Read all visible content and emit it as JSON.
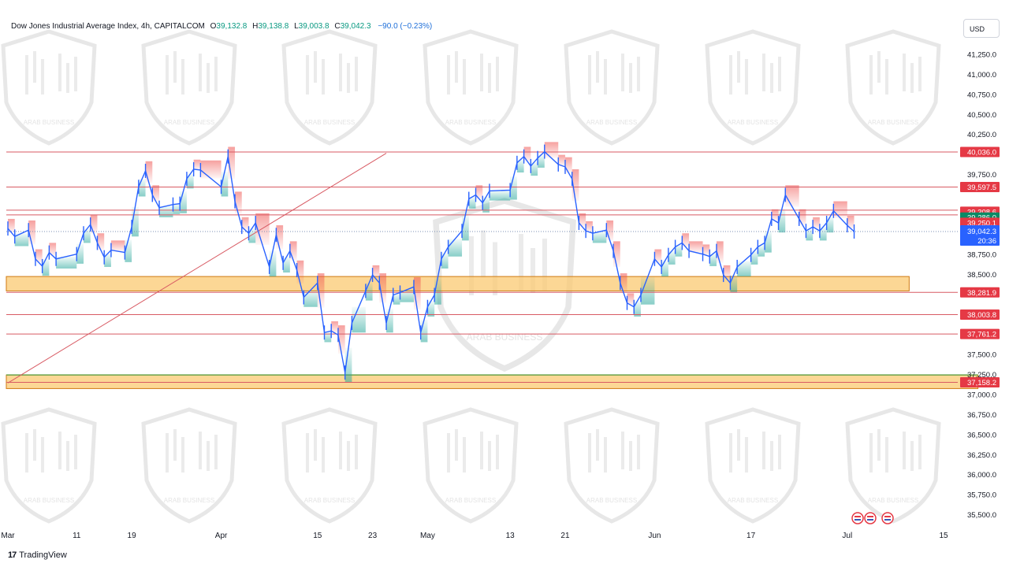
{
  "header": {
    "symbol": "Dow Jones Industrial Average Index, 4h, CAPITALCOM",
    "open_label": "O",
    "open": "39,132.8",
    "high_label": "H",
    "high": "39,138.8",
    "low_label": "L",
    "low": "39,003.8",
    "close_label": "C",
    "close": "39,042.3",
    "change": "−90.0 (−0.23%)"
  },
  "currency": "USD",
  "watermark_text": "ARAB BUSINESS",
  "footer": {
    "brand": "TradingView",
    "brand_icon": "tradingview-logo-icon"
  },
  "colors": {
    "candle": "#2962ff",
    "level_line": "#d85a63",
    "zone_fill": "#fbc972",
    "zone_border": "#d07a12",
    "green_zone_border": "#6aa54c",
    "band_up": "#26a69a",
    "band_down": "#ef5350",
    "last_price": "#2962ff",
    "resistance_label": "#e53945",
    "support_label_green": "#0a8a65"
  },
  "chart_data": {
    "type": "line",
    "ylim": [
      35400,
      41400
    ],
    "y_ticks": [
      "41,250.0",
      "41,000.0",
      "40,750.0",
      "40,500.0",
      "40,250.0",
      "39,750.0",
      "38,750.0",
      "38,500.0",
      "37,500.0",
      "37,250.0",
      "37,000.0",
      "36,750.0",
      "36,500.0",
      "36,250.0",
      "36,000.0",
      "35,750.0",
      "35,500.0"
    ],
    "x_labels": [
      {
        "label": "Mar",
        "date": "2024-03-01"
      },
      {
        "label": "11",
        "date": "2024-03-11"
      },
      {
        "label": "19",
        "date": "2024-03-19"
      },
      {
        "label": "Apr",
        "date": "2024-04-01"
      },
      {
        "label": "15",
        "date": "2024-04-15"
      },
      {
        "label": "23",
        "date": "2024-04-23"
      },
      {
        "label": "May",
        "date": "2024-05-01"
      },
      {
        "label": "13",
        "date": "2024-05-13"
      },
      {
        "label": "21",
        "date": "2024-05-21"
      },
      {
        "label": "Jun",
        "date": "2024-06-03"
      },
      {
        "label": "17",
        "date": "2024-06-17"
      },
      {
        "label": "Jul",
        "date": "2024-07-01"
      },
      {
        "label": "15",
        "date": "2024-07-15"
      }
    ],
    "price_levels": [
      {
        "value": 40036.0,
        "label": "40,036.0",
        "color": "#e53945"
      },
      {
        "value": 39597.5,
        "label": "39,597.5",
        "color": "#e53945"
      },
      {
        "value": 39308.6,
        "label": "39,308.6",
        "color": "#e53945"
      },
      {
        "value": 39286.0,
        "label": "39,286.0",
        "color": "#0a8a65"
      },
      {
        "value": 39250.1,
        "label": "39,250.1",
        "color": "#e53945"
      },
      {
        "value": 38281.9,
        "label": "38,281.9",
        "color": "#e53945"
      },
      {
        "value": 38003.8,
        "label": "38,003.8",
        "color": "#e53945"
      },
      {
        "value": 37761.2,
        "label": "37,761.2",
        "color": "#e53945"
      },
      {
        "value": 37158.2,
        "label": "37,158.2",
        "color": "#e53945"
      }
    ],
    "last_price": {
      "value": 39042.3,
      "label": "39,042.3",
      "countdown": "20:36"
    },
    "zones": [
      {
        "from": 38300,
        "to": 38480,
        "x0": "2024-03-01",
        "x1": "2024-07-10"
      },
      {
        "from": 37080,
        "to": 37250,
        "x0": "2024-03-01",
        "x1": "2024-07-20"
      }
    ],
    "trendline": {
      "x0": "2024-03-01",
      "y0": 37150,
      "x1": "2024-04-25",
      "y1": 40020
    },
    "series": [
      {
        "values": [
          [
            "2024-03-01",
            39080
          ],
          [
            "2024-03-02",
            38980
          ],
          [
            "2024-03-04",
            39060
          ],
          [
            "2024-03-05",
            38700
          ],
          [
            "2024-03-06",
            38610
          ],
          [
            "2024-03-07",
            38780
          ],
          [
            "2024-03-08",
            38700
          ],
          [
            "2024-03-11",
            38760
          ],
          [
            "2024-03-12",
            39020
          ],
          [
            "2024-03-13",
            39130
          ],
          [
            "2024-03-14",
            38900
          ],
          [
            "2024-03-15",
            38720
          ],
          [
            "2024-03-16",
            38810
          ],
          [
            "2024-03-18",
            38780
          ],
          [
            "2024-03-19",
            39100
          ],
          [
            "2024-03-20",
            39600
          ],
          [
            "2024-03-21",
            39800
          ],
          [
            "2024-03-22",
            39500
          ],
          [
            "2024-03-23",
            39340
          ],
          [
            "2024-03-25",
            39380
          ],
          [
            "2024-03-26",
            39390
          ],
          [
            "2024-03-27",
            39700
          ],
          [
            "2024-03-28",
            39820
          ],
          [
            "2024-03-29",
            39810
          ],
          [
            "2024-04-01",
            39600
          ],
          [
            "2024-04-02",
            39980
          ],
          [
            "2024-04-03",
            39420
          ],
          [
            "2024-04-04",
            39100
          ],
          [
            "2024-04-05",
            39020
          ],
          [
            "2024-04-06",
            39150
          ],
          [
            "2024-04-08",
            38600
          ],
          [
            "2024-04-09",
            39000
          ],
          [
            "2024-04-10",
            38650
          ],
          [
            "2024-04-11",
            38800
          ],
          [
            "2024-04-12",
            38560
          ],
          [
            "2024-04-13",
            38220
          ],
          [
            "2024-04-15",
            38400
          ],
          [
            "2024-04-16",
            37780
          ],
          [
            "2024-04-17",
            37800
          ],
          [
            "2024-04-18",
            37750
          ],
          [
            "2024-04-19",
            37280
          ],
          [
            "2024-04-20",
            37900
          ],
          [
            "2024-04-22",
            38300
          ],
          [
            "2024-04-23",
            38500
          ],
          [
            "2024-04-24",
            38400
          ],
          [
            "2024-04-25",
            37900
          ],
          [
            "2024-04-26",
            38250
          ],
          [
            "2024-04-27",
            38280
          ],
          [
            "2024-04-29",
            38350
          ],
          [
            "2024-04-30",
            37780
          ],
          [
            "2024-05-01",
            38100
          ],
          [
            "2024-05-02",
            38250
          ],
          [
            "2024-05-03",
            38700
          ],
          [
            "2024-05-04",
            38850
          ],
          [
            "2024-05-06",
            39050
          ],
          [
            "2024-05-07",
            39450
          ],
          [
            "2024-05-08",
            39500
          ],
          [
            "2024-05-09",
            39400
          ],
          [
            "2024-05-10",
            39550
          ],
          [
            "2024-05-13",
            39560
          ],
          [
            "2024-05-14",
            39900
          ],
          [
            "2024-05-15",
            39980
          ],
          [
            "2024-05-16",
            39860
          ],
          [
            "2024-05-17",
            39960
          ],
          [
            "2024-05-18",
            40040
          ],
          [
            "2024-05-20",
            39880
          ],
          [
            "2024-05-21",
            39850
          ],
          [
            "2024-05-22",
            39700
          ],
          [
            "2024-05-23",
            39150
          ],
          [
            "2024-05-24",
            39050
          ],
          [
            "2024-05-25",
            39020
          ],
          [
            "2024-05-27",
            39060
          ],
          [
            "2024-05-28",
            38800
          ],
          [
            "2024-05-29",
            38400
          ],
          [
            "2024-05-30",
            38150
          ],
          [
            "2024-05-31",
            38100
          ],
          [
            "2024-06-01",
            38250
          ],
          [
            "2024-06-03",
            38700
          ],
          [
            "2024-06-04",
            38600
          ],
          [
            "2024-06-05",
            38750
          ],
          [
            "2024-06-06",
            38850
          ],
          [
            "2024-06-07",
            38900
          ],
          [
            "2024-06-08",
            38800
          ],
          [
            "2024-06-10",
            38760
          ],
          [
            "2024-06-11",
            38730
          ],
          [
            "2024-06-12",
            38800
          ],
          [
            "2024-06-13",
            38500
          ],
          [
            "2024-06-14",
            38400
          ],
          [
            "2024-06-15",
            38600
          ],
          [
            "2024-06-17",
            38750
          ],
          [
            "2024-06-18",
            38850
          ],
          [
            "2024-06-19",
            38900
          ],
          [
            "2024-06-20",
            39200
          ],
          [
            "2024-06-21",
            39150
          ],
          [
            "2024-06-22",
            39500
          ],
          [
            "2024-06-24",
            39200
          ],
          [
            "2024-06-25",
            39050
          ],
          [
            "2024-06-26",
            39100
          ],
          [
            "2024-06-27",
            39050
          ],
          [
            "2024-06-28",
            39150
          ],
          [
            "2024-06-29",
            39300
          ],
          [
            "2024-07-01",
            39120
          ],
          [
            "2024-07-02",
            39042
          ]
        ]
      }
    ]
  }
}
